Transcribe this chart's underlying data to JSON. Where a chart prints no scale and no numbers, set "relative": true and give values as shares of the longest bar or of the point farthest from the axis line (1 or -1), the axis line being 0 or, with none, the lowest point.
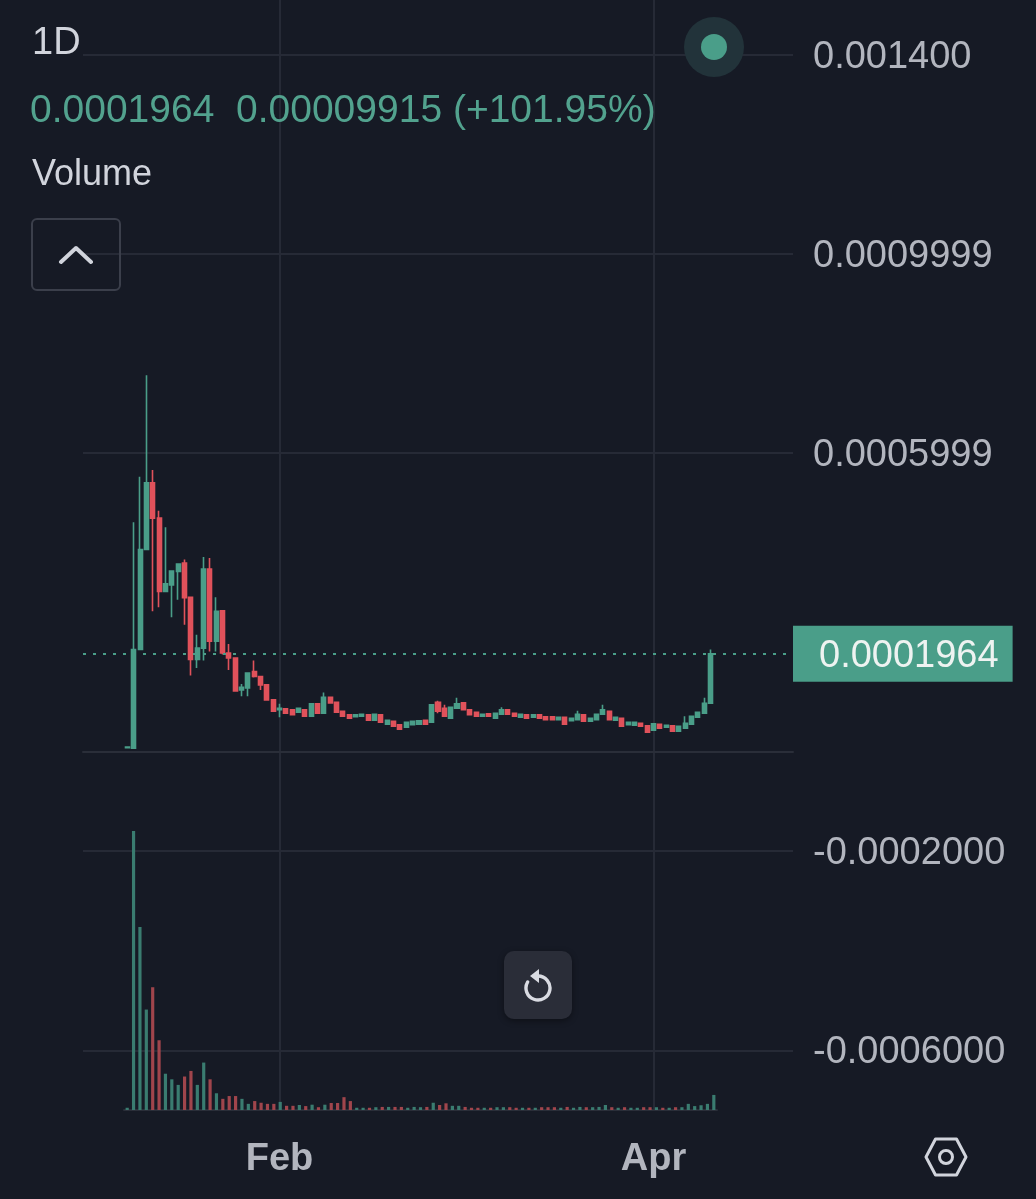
{
  "chart_data": [
    {
      "type": "candlestick",
      "title": "1D",
      "subtitle": "0.0001964  0.00009915 (+101.95%)",
      "x": [
        "--01-08",
        "--01-09",
        "--01-10",
        "--01-11",
        "--01-12",
        "--01-13",
        "--01-14",
        "--01-15",
        "--01-16",
        "--01-17",
        "--01-18",
        "--01-19",
        "--01-20",
        "--01-21",
        "--01-22",
        "--01-23",
        "--01-24",
        "--01-25",
        "--01-26",
        "--01-27",
        "--01-28",
        "--01-29",
        "--01-30",
        "--01-31",
        "--02-01",
        "--02-02",
        "--02-03",
        "--02-04",
        "--02-05",
        "--02-06",
        "--02-07",
        "--02-08",
        "--02-09",
        "--02-10",
        "--02-11",
        "--02-12",
        "--02-13",
        "--02-14",
        "--02-15",
        "--02-16",
        "--02-17",
        "--02-18",
        "--02-19",
        "--02-20",
        "--02-21",
        "--02-22",
        "--02-23",
        "--02-24",
        "--02-25",
        "--02-26",
        "--02-27",
        "--02-28",
        "--03-01",
        "--03-02",
        "--03-03",
        "--03-04",
        "--03-05",
        "--03-06",
        "--03-07",
        "--03-08",
        "--03-09",
        "--03-10",
        "--03-11",
        "--03-12",
        "--03-13",
        "--03-14",
        "--03-15",
        "--03-16",
        "--03-17",
        "--03-18",
        "--03-19",
        "--03-20",
        "--03-21",
        "--03-22",
        "--03-23",
        "--03-24",
        "--03-25",
        "--03-26",
        "--03-27",
        "--03-28",
        "--03-29",
        "--03-30",
        "--03-31",
        "--04-01",
        "--04-02",
        "--04-03",
        "--04-04",
        "--04-05",
        "--04-06",
        "--04-07",
        "--04-08",
        "--04-09",
        "--04-10"
      ],
      "ohlc": [
        [
          8e-06,
          9e-06,
          7e-06,
          9e-06
        ],
        [
          7e-06,
          0.000461,
          7e-06,
          0.000205
        ],
        [
          0.000205,
          0.000552,
          0.000205,
          0.000406
        ],
        [
          0.000406,
          0.000756,
          0.000406,
          0.00054
        ],
        [
          0.00054,
          0.000566,
          0.000282,
          0.000469
        ],
        [
          0.000469,
          0.000484,
          0.00029,
          0.000322
        ],
        [
          0.000322,
          0.000451,
          0.000322,
          0.000337
        ],
        [
          0.000335,
          0.000363,
          0.00027,
          0.000363
        ],
        [
          0.000362,
          0.000377,
          0.000305,
          0.000377
        ],
        [
          0.000379,
          0.000386,
          0.000255,
          0.000309
        ],
        [
          0.00031,
          0.00031,
          0.000153,
          0.000185
        ],
        [
          0.000185,
          0.000235,
          0.000168,
          0.000208
        ],
        [
          0.000208,
          0.000391,
          0.000183,
          0.000367
        ],
        [
          0.000367,
          0.000389,
          0.000201,
          0.000222
        ],
        [
          0.000222,
          0.00031,
          0.000201,
          0.000282
        ],
        [
          0.000283,
          0.000283,
          0.000195,
          0.000198
        ],
        [
          0.000198,
          0.000216,
          0.000164,
          0.000188
        ],
        [
          0.000188,
          0.000188,
          0.000122,
          0.000122
        ],
        [
          0.000124,
          0.000136,
          0.000111,
          0.000129
        ],
        [
          0.000128,
          0.000158,
          0.000111,
          0.000158
        ],
        [
          0.000161,
          0.000183,
          0.000149,
          0.000151
        ],
        [
          0.000151,
          0.000151,
          0.000124,
          0.000134
        ],
        [
          0.000134,
          0.000134,
          0.000104,
          0.000104
        ],
        [
          0.000104,
          0.000104,
          8.1e-05,
          8.1e-05
        ],
        [
          8.4e-05,
          9.6e-05,
          6.9e-05,
          8.7e-05
        ],
        [
          8.6e-05,
          8.6e-05,
          7.7e-05,
          7.7e-05
        ],
        [
          8.4e-05,
          8.4e-05,
          7.4e-05,
          7.4e-05
        ],
        [
          7.9e-05,
          8.7e-05,
          7.9e-05,
          8.7e-05
        ],
        [
          8.4e-05,
          8.4e-05,
          7.1e-05,
          7.1e-05
        ],
        [
          7.1e-05,
          9.6e-05,
          7.1e-05,
          9.6e-05
        ],
        [
          9.6e-05,
          9.6e-05,
          7.7e-05,
          7.7e-05
        ],
        [
          7.7e-05,
          0.000119,
          7.7e-05,
          0.000109
        ],
        [
          0.000109,
          0.000109,
          9.8e-05,
          9.8e-05
        ],
        [
          9.9e-05,
          9.9e-05,
          7.9e-05,
          7.9e-05
        ],
        [
          8.1e-05,
          8.1e-05,
          7.1e-05,
          7.1e-05
        ],
        [
          7.4e-05,
          7.4e-05,
          6.7e-05,
          6.7e-05
        ],
        [
          7e-05,
          7.4e-05,
          7e-05,
          7.4e-05
        ],
        [
          7.1e-05,
          7.5e-05,
          7.1e-05,
          7.5e-05
        ],
        [
          7.4e-05,
          7.4e-05,
          6.3e-05,
          6.3e-05
        ],
        [
          6.3e-05,
          7.5e-05,
          6.3e-05,
          7.5e-05
        ],
        [
          7.4e-05,
          7.4e-05,
          5.9e-05,
          5.9e-05
        ],
        [
          5.5e-05,
          6.3e-05,
          5.5e-05,
          6.3e-05
        ],
        [
          6.1e-05,
          6.1e-05,
          5.1e-05,
          5.1e-05
        ],
        [
          5.4e-05,
          5.4e-05,
          4.5e-05,
          4.5e-05
        ],
        [
          4.9e-05,
          5.9e-05,
          4.9e-05,
          5.9e-05
        ],
        [
          5.4e-05,
          6.1e-05,
          5.4e-05,
          6.1e-05
        ],
        [
          5.5e-05,
          6.2e-05,
          5.5e-05,
          6.2e-05
        ],
        [
          6.3e-05,
          6.3e-05,
          5.5e-05,
          5.5e-05
        ],
        [
          5.9e-05,
          9.4e-05,
          5.9e-05,
          9.4e-05
        ],
        [
          9.9e-05,
          0.000102,
          7.7e-05,
          8.1e-05
        ],
        [
          8.7e-05,
          9.4e-05,
          7.1e-05,
          7.1e-05
        ],
        [
          6.7e-05,
          8.9e-05,
          6.7e-05,
          8.9e-05
        ],
        [
          8.7e-05,
          0.000108,
          8.7e-05,
          9.6e-05
        ],
        [
          9.8e-05,
          9.8e-05,
          8.4e-05,
          8.4e-05
        ],
        [
          8.4e-05,
          8.4e-05,
          7.4e-05,
          7.4e-05
        ],
        [
          7.9e-05,
          7.9e-05,
          7.1e-05,
          7.1e-05
        ],
        [
          7.1e-05,
          7.5e-05,
          7.1e-05,
          7.5e-05
        ],
        [
          7.6e-05,
          7.6e-05,
          7.1e-05,
          7.1e-05
        ],
        [
          6.7e-05,
          7.7e-05,
          6.7e-05,
          7.7e-05
        ],
        [
          7.5e-05,
          8.9e-05,
          7.5e-05,
          8.4e-05
        ],
        [
          8.4e-05,
          8.4e-05,
          7.5e-05,
          7.5e-05
        ],
        [
          7.7e-05,
          7.7e-05,
          7.1e-05,
          7.1e-05
        ],
        [
          6.9e-05,
          7.5e-05,
          6.9e-05,
          7.5e-05
        ],
        [
          7.4e-05,
          7.4e-05,
          6.7e-05,
          6.7e-05
        ],
        [
          6.9e-05,
          7.4e-05,
          6.9e-05,
          7.4e-05
        ],
        [
          7.4e-05,
          7.4e-05,
          6.7e-05,
          6.7e-05
        ],
        [
          7e-05,
          7e-05,
          6.4e-05,
          6.4e-05
        ],
        [
          7e-05,
          7e-05,
          6.4e-05,
          6.4e-05
        ],
        [
          6.4e-05,
          6.9e-05,
          6.4e-05,
          6.9e-05
        ],
        [
          6.9e-05,
          6.9e-05,
          5.5e-05,
          5.5e-05
        ],
        [
          6.2e-05,
          6.7e-05,
          6.2e-05,
          6.7e-05
        ],
        [
          6.4e-05,
          8.2e-05,
          6.4e-05,
          7.5e-05
        ],
        [
          7.4e-05,
          7.4e-05,
          6.1e-05,
          6.1e-05
        ],
        [
          6.1e-05,
          6.7e-05,
          6.1e-05,
          6.7e-05
        ],
        [
          6.4e-05,
          7.5e-05,
          6.4e-05,
          7.5e-05
        ],
        [
          7.5e-05,
          9.4e-05,
          7.5e-05,
          8.4e-05
        ],
        [
          8.1e-05,
          8.1e-05,
          6.4e-05,
          6.4e-05
        ],
        [
          6.3e-05,
          6.9e-05,
          6.3e-05,
          6.9e-05
        ],
        [
          6.7e-05,
          6.7e-05,
          5.1e-05,
          5.1e-05
        ],
        [
          5.4e-05,
          5.9e-05,
          5.4e-05,
          5.9e-05
        ],
        [
          5.3e-05,
          5.9e-05,
          5.3e-05,
          5.9e-05
        ],
        [
          5.7e-05,
          5.7e-05,
          5.1e-05,
          5.1e-05
        ],
        [
          5.2e-05,
          5.2e-05,
          3.9e-05,
          3.9e-05
        ],
        [
          4.3e-05,
          5.6e-05,
          4.3e-05,
          5.6e-05
        ],
        [
          5.5e-05,
          5.5e-05,
          4.7e-05,
          4.7e-05
        ],
        [
          4.9e-05,
          5.3e-05,
          4.9e-05,
          5.3e-05
        ],
        [
          5.2e-05,
          5.2e-05,
          4.1e-05,
          4.1e-05
        ],
        [
          4.1e-05,
          5.1e-05,
          4.1e-05,
          5.1e-05
        ],
        [
          4.7e-05,
          7.1e-05,
          4.7e-05,
          5.7e-05
        ],
        [
          5.5e-05,
          7.1e-05,
          5.5e-05,
          7.1e-05
        ],
        [
          6.9e-05,
          7.9e-05,
          6.9e-05,
          7.9e-05
        ],
        [
          7.7e-05,
          0.000108,
          7.7e-05,
          9.725e-05
        ],
        [
          9.725e-05,
          0.000205,
          9.725e-05,
          0.0001964
        ]
      ],
      "colors": [
        "#4a9e89",
        "#4a9e89",
        "#4a9e89",
        "#4a9e89",
        "#e0525b",
        "#e0525b",
        "#4a9e89",
        "#4a9e89",
        "#4a9e89",
        "#e0525b",
        "#e0525b",
        "#4a9e89",
        "#4a9e89",
        "#e0525b",
        "#4a9e89",
        "#e0525b",
        "#e0525b",
        "#e0525b",
        "#4a9e89",
        "#4a9e89",
        "#e0525b",
        "#e0525b",
        "#e0525b",
        "#e0525b",
        "#4a9e89",
        "#e0525b",
        "#e0525b",
        "#4a9e89",
        "#e0525b",
        "#4a9e89",
        "#e0525b",
        "#4a9e89",
        "#e0525b",
        "#e0525b",
        "#e0525b",
        "#e0525b",
        "#4a9e89",
        "#4a9e89",
        "#e0525b",
        "#4a9e89",
        "#e0525b",
        "#4a9e89",
        "#e0525b",
        "#e0525b",
        "#4a9e89",
        "#4a9e89",
        "#4a9e89",
        "#e0525b",
        "#4a9e89",
        "#e0525b",
        "#e0525b",
        "#4a9e89",
        "#4a9e89",
        "#e0525b",
        "#e0525b",
        "#e0525b",
        "#4a9e89",
        "#e0525b",
        "#4a9e89",
        "#4a9e89",
        "#e0525b",
        "#e0525b",
        "#4a9e89",
        "#e0525b",
        "#4a9e89",
        "#e0525b",
        "#e0525b",
        "#e0525b",
        "#4a9e89",
        "#e0525b",
        "#4a9e89",
        "#4a9e89",
        "#e0525b",
        "#4a9e89",
        "#4a9e89",
        "#4a9e89",
        "#e0525b",
        "#4a9e89",
        "#e0525b",
        "#4a9e89",
        "#4a9e89",
        "#e0525b",
        "#e0525b",
        "#4a9e89",
        "#e0525b",
        "#4a9e89",
        "#e0525b",
        "#4a9e89",
        "#4a9e89",
        "#4a9e89",
        "#4a9e89",
        "#4a9e89",
        "#4a9e89"
      ],
      "xlim": [
        "--01-01",
        "--04-23"
      ],
      "xticks": [
        {
          "value": "--02-01",
          "label": "Feb"
        },
        {
          "value": "--04-01",
          "label": "Apr"
        }
      ],
      "ylim": [
        -0.00072,
        0.00151
      ],
      "yticks": [
        {
          "value": 0.0014,
          "label": "0.001400"
        },
        0.0009999,
        0.0005999,
        {
          "value": -0.0002,
          "label": "-0.0002000"
        },
        {
          "value": -0.0006,
          "label": "-0.0006000"
        }
      ],
      "ref_lines": [
        {
          "axis": "y",
          "value": 0.0001964,
          "label": "0.0001964",
          "color": "#4a9e89",
          "line_style": "dotted"
        }
      ],
      "grid": true
    },
    {
      "type": "bar",
      "title": "Volume",
      "relative": true,
      "categories": [
        null,
        null,
        null,
        null,
        null,
        null,
        null,
        null,
        null,
        null,
        null,
        null,
        null,
        null,
        null,
        null,
        null,
        null,
        null,
        null,
        null,
        null,
        null,
        null,
        null,
        null,
        null,
        null,
        null,
        null,
        null,
        null,
        null,
        null,
        null,
        null,
        null,
        null,
        null,
        null,
        null,
        null,
        null,
        null,
        null,
        null,
        null,
        null,
        null,
        null,
        null,
        null,
        null,
        null,
        null,
        null,
        null,
        null,
        null,
        null,
        null,
        null,
        null,
        null,
        null,
        null,
        null,
        null,
        null,
        null,
        null,
        null,
        null,
        null,
        null,
        null,
        null,
        null,
        null,
        null,
        null,
        null,
        null,
        null,
        null,
        null,
        null,
        null,
        null,
        null,
        null,
        null,
        null
      ],
      "values": [
        0.008,
        1,
        0.656,
        0.36,
        0.44,
        0.25,
        0.13,
        0.11,
        0.09,
        0.12,
        0.14,
        0.09,
        0.17,
        0.11,
        0.06,
        0.04,
        0.05,
        0.05,
        0.04,
        0.022,
        0.032,
        0.026,
        0.022,
        0.022,
        0.029,
        0.015,
        0.015,
        0.018,
        0.014,
        0.019,
        0.01,
        0.019,
        0.025,
        0.025,
        0.046,
        0.032,
        0.008,
        0.008,
        0.008,
        0.01,
        0.011,
        0.011,
        0.011,
        0.011,
        0.008,
        0.011,
        0.01,
        0.011,
        0.026,
        0.018,
        0.024,
        0.015,
        0.015,
        0.011,
        0.008,
        0.008,
        0.008,
        0.008,
        0.01,
        0.01,
        0.01,
        0.008,
        0.008,
        0.008,
        0.008,
        0.01,
        0.01,
        0.01,
        0.008,
        0.011,
        0.008,
        0.011,
        0.01,
        0.01,
        0.011,
        0.018,
        0.01,
        0.008,
        0.01,
        0.008,
        0.008,
        0.01,
        0.01,
        0.01,
        0.008,
        0.008,
        0.01,
        0.01,
        0.022,
        0.014,
        0.017,
        0.022,
        0.054
      ],
      "colors": [
        "#3a7c70",
        "#3a7c70",
        "#3a7c70",
        "#3a7c70",
        "#a0454c",
        "#a0454c",
        "#3a7c70",
        "#3a7c70",
        "#3a7c70",
        "#a0454c",
        "#a0454c",
        "#3a7c70",
        "#3a7c70",
        "#a0454c",
        "#3a7c70",
        "#a0454c",
        "#a0454c",
        "#a0454c",
        "#3a7c70",
        "#3a7c70",
        "#a0454c",
        "#a0454c",
        "#a0454c",
        "#a0454c",
        "#3a7c70",
        "#a0454c",
        "#a0454c",
        "#3a7c70",
        "#a0454c",
        "#3a7c70",
        "#a0454c",
        "#3a7c70",
        "#a0454c",
        "#a0454c",
        "#a0454c",
        "#a0454c",
        "#3a7c70",
        "#3a7c70",
        "#a0454c",
        "#3a7c70",
        "#a0454c",
        "#3a7c70",
        "#a0454c",
        "#a0454c",
        "#3a7c70",
        "#3a7c70",
        "#3a7c70",
        "#a0454c",
        "#3a7c70",
        "#a0454c",
        "#a0454c",
        "#3a7c70",
        "#3a7c70",
        "#a0454c",
        "#a0454c",
        "#a0454c",
        "#3a7c70",
        "#a0454c",
        "#3a7c70",
        "#3a7c70",
        "#a0454c",
        "#a0454c",
        "#3a7c70",
        "#a0454c",
        "#3a7c70",
        "#a0454c",
        "#a0454c",
        "#a0454c",
        "#3a7c70",
        "#a0454c",
        "#3a7c70",
        "#3a7c70",
        "#a0454c",
        "#3a7c70",
        "#3a7c70",
        "#3a7c70",
        "#a0454c",
        "#3a7c70",
        "#a0454c",
        "#3a7c70",
        "#3a7c70",
        "#a0454c",
        "#a0454c",
        "#3a7c70",
        "#a0454c",
        "#3a7c70",
        "#a0454c",
        "#3a7c70",
        "#3a7c70",
        "#3a7c70",
        "#3a7c70",
        "#3a7c70",
        "#3a7c70"
      ]
    }
  ]
}
